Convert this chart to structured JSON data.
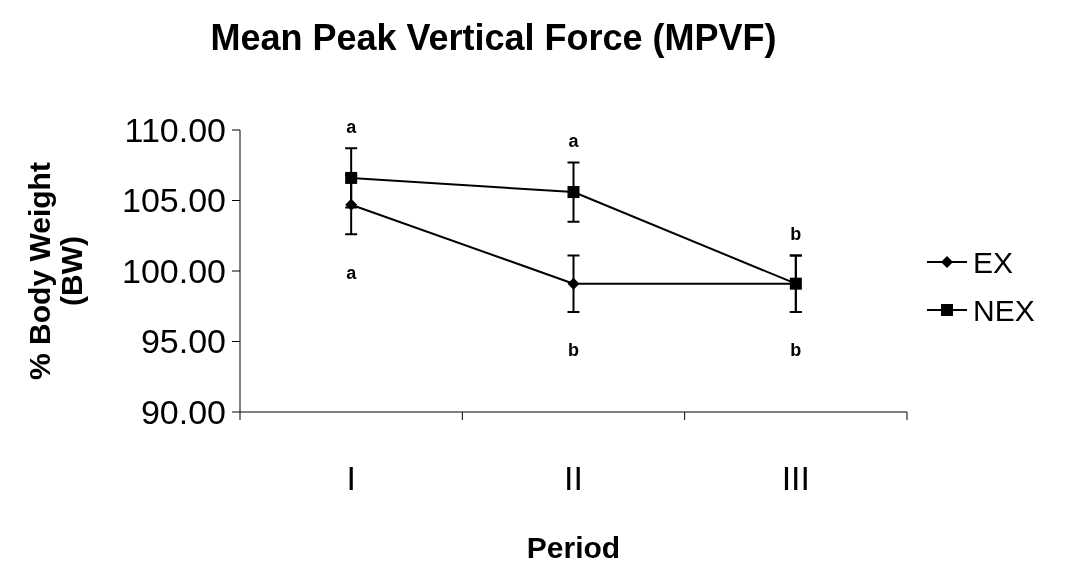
{
  "chart_data": {
    "type": "line",
    "title": "Mean Peak Vertical Force (MPVF)",
    "xlabel": "Period",
    "ylabel": "% Body Weight (BW)",
    "categories": [
      "I",
      "II",
      "III"
    ],
    "series": [
      {
        "name": "EX",
        "color": "#000000",
        "marker": "diamond",
        "values": [
          104.7,
          99.1,
          99.1
        ],
        "errors": [
          2.1,
          2.0,
          2.0
        ]
      },
      {
        "name": "NEX",
        "color": "#000000",
        "marker": "square",
        "values": [
          106.6,
          105.6,
          99.1
        ],
        "errors": [
          2.1,
          2.1,
          2.0
        ]
      }
    ],
    "ylim": [
      90,
      110
    ],
    "yticks": [
      {
        "value": 90,
        "label": "90.00"
      },
      {
        "value": 95,
        "label": "95.00"
      },
      {
        "value": 100,
        "label": "100.00"
      },
      {
        "value": 105,
        "label": "105.00"
      },
      {
        "value": 110,
        "label": "110.00"
      }
    ],
    "annotations": [
      "a",
      "a",
      "a",
      "b",
      "b",
      "b"
    ],
    "legend": "right",
    "grid": false,
    "line_style": "solid"
  }
}
